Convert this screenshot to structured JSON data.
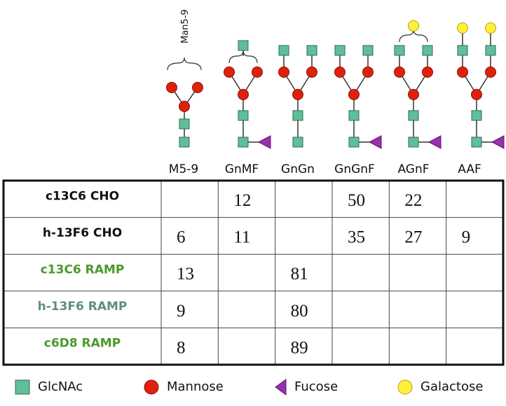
{
  "annotation": "Man5-9",
  "column_labels": [
    "M5-9",
    "GnMF",
    "GnGn",
    "GnGnF",
    "AGnF",
    "AAF"
  ],
  "table": {
    "rows": [
      {
        "label": "c13C6 CHO",
        "values": [
          null,
          12,
          null,
          50,
          22,
          null
        ]
      },
      {
        "label": "h-13F6 CHO",
        "values": [
          6,
          11,
          null,
          35,
          27,
          9
        ]
      },
      {
        "label": "c13C6 RAMP",
        "values": [
          13,
          null,
          81,
          null,
          null,
          null
        ]
      },
      {
        "label": "h-13F6 RAMP",
        "values": [
          9,
          null,
          80,
          null,
          null,
          null
        ]
      },
      {
        "label": "c6D8 RAMP",
        "values": [
          8,
          null,
          89,
          null,
          null,
          null
        ]
      }
    ]
  },
  "legend": [
    "GlcNAc",
    "Mannose",
    "Fucose",
    "Galactose"
  ]
}
